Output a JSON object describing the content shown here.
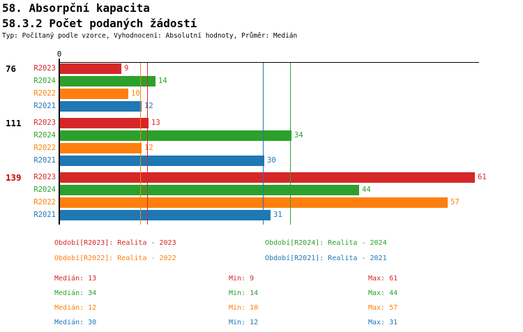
{
  "header": {
    "title": "58. Absorpční kapacita",
    "subtitle": "58.3.2 Počet podaných žádostí",
    "meta": "Typ: Počítaný podle vzorce, Vyhodnocení: Absolutní hodnoty, Průměr: Medián"
  },
  "colors": {
    "red": "#d62728",
    "green": "#2ca02c",
    "orange": "#ff7f0e",
    "blue": "#1f77b4",
    "highlight_group": "#cc0000",
    "axis": "#000000",
    "background": "#ffffff"
  },
  "chart_data": {
    "type": "bar",
    "orientation": "horizontal",
    "axis_zero_label": "0",
    "xlim": [
      0,
      62
    ],
    "grid": false,
    "series_order": [
      "R2023",
      "R2024",
      "R2022",
      "R2021"
    ],
    "series_colors": {
      "R2023": "#d62728",
      "R2024": "#2ca02c",
      "R2022": "#ff7f0e",
      "R2021": "#1f77b4"
    },
    "groups": [
      {
        "label": "76",
        "highlighted": false,
        "values": {
          "R2023": 9,
          "R2024": 14,
          "R2022": 10,
          "R2021": 12
        }
      },
      {
        "label": "111",
        "highlighted": false,
        "values": {
          "R2023": 13,
          "R2024": 34,
          "R2022": 12,
          "R2021": 30
        }
      },
      {
        "label": "139",
        "highlighted": true,
        "values": {
          "R2023": 61,
          "R2024": 44,
          "R2022": 57,
          "R2021": 31
        }
      }
    ],
    "median_lines": {
      "R2023": 13,
      "R2024": 34,
      "R2022": 12,
      "R2021": 30
    }
  },
  "legend": {
    "items": [
      {
        "series": "R2023",
        "label": "Období[R2023]: Realita - 2023"
      },
      {
        "series": "R2024",
        "label": "Období[R2024]: Realita - 2024"
      },
      {
        "series": "R2022",
        "label": "Období[R2022]: Realita - 2022"
      },
      {
        "series": "R2021",
        "label": "Období[R2021]: Realita - 2021"
      }
    ]
  },
  "stats": {
    "labels": {
      "median": "Medián",
      "min": "Min",
      "max": "Max"
    },
    "rows": [
      {
        "series": "R2023",
        "median": 13,
        "min": 9,
        "max": 61
      },
      {
        "series": "R2024",
        "median": 34,
        "min": 14,
        "max": 44
      },
      {
        "series": "R2022",
        "median": 12,
        "min": 10,
        "max": 57
      },
      {
        "series": "R2021",
        "median": 30,
        "min": 12,
        "max": 31
      }
    ]
  }
}
